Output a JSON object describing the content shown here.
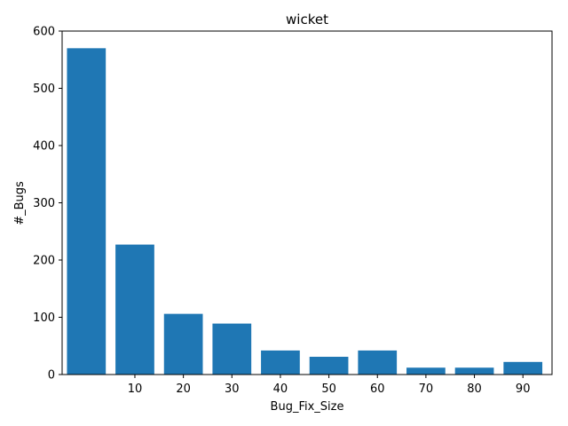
{
  "chart_data": {
    "type": "bar",
    "title": "wicket",
    "xlabel": "Bug_Fix_Size",
    "ylabel": "#_Bugs",
    "x": [
      0,
      10,
      20,
      30,
      40,
      50,
      60,
      70,
      80,
      90
    ],
    "values": [
      570,
      227,
      106,
      89,
      42,
      31,
      42,
      12,
      12,
      22
    ],
    "xticks": [
      10,
      20,
      30,
      40,
      50,
      60,
      70,
      80,
      90,
      100
    ],
    "xtick_labels": [
      "10",
      "20",
      "30",
      "40",
      "50",
      "60",
      "70",
      "80",
      "90",
      ""
    ],
    "yticks": [
      0,
      100,
      200,
      300,
      400,
      500,
      600
    ],
    "ylim": [
      0,
      600
    ],
    "xlim": [
      -5,
      96
    ],
    "grid": false,
    "legend": "none",
    "colors": {
      "bar": "#1f77b4",
      "axis": "#000000"
    }
  }
}
